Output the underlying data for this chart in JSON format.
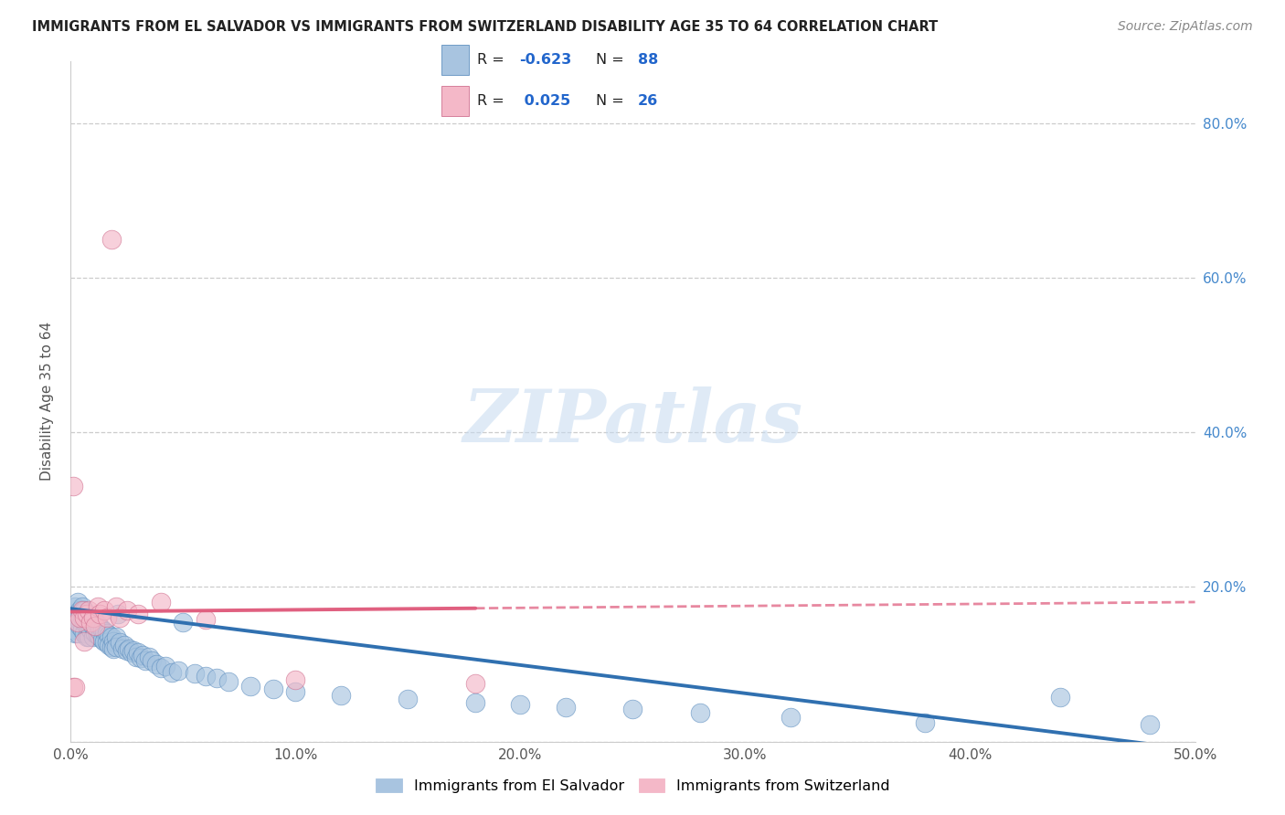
{
  "title": "IMMIGRANTS FROM EL SALVADOR VS IMMIGRANTS FROM SWITZERLAND DISABILITY AGE 35 TO 64 CORRELATION CHART",
  "source": "Source: ZipAtlas.com",
  "ylabel": "Disability Age 35 to 64",
  "xlim": [
    0.0,
    0.5
  ],
  "ylim": [
    0.0,
    0.88
  ],
  "xticks": [
    0.0,
    0.1,
    0.2,
    0.3,
    0.4,
    0.5
  ],
  "xtick_labels": [
    "0.0%",
    "10.0%",
    "20.0%",
    "30.0%",
    "40.0%",
    "50.0%"
  ],
  "yticks": [
    0.0,
    0.2,
    0.4,
    0.6,
    0.8
  ],
  "ytick_labels_right": [
    "",
    "20.0%",
    "40.0%",
    "60.0%",
    "80.0%"
  ],
  "blue_color": "#a8c4e0",
  "pink_color": "#f4b8c8",
  "blue_line_color": "#3070b0",
  "pink_line_color": "#e06080",
  "R_blue": -0.623,
  "N_blue": 88,
  "R_pink": 0.025,
  "N_pink": 26,
  "legend_blue_label": "Immigrants from El Salvador",
  "legend_pink_label": "Immigrants from Switzerland",
  "watermark": "ZIPatlas",
  "blue_intercept": 0.172,
  "blue_slope": -0.365,
  "pink_intercept": 0.168,
  "pink_slope": 0.025,
  "blue_scatter_x": [
    0.001,
    0.001,
    0.002,
    0.002,
    0.002,
    0.003,
    0.003,
    0.003,
    0.003,
    0.004,
    0.004,
    0.004,
    0.005,
    0.005,
    0.005,
    0.006,
    0.006,
    0.006,
    0.007,
    0.007,
    0.007,
    0.008,
    0.008,
    0.008,
    0.009,
    0.009,
    0.01,
    0.01,
    0.01,
    0.011,
    0.011,
    0.012,
    0.012,
    0.013,
    0.013,
    0.014,
    0.014,
    0.015,
    0.015,
    0.016,
    0.016,
    0.017,
    0.017,
    0.018,
    0.018,
    0.019,
    0.019,
    0.02,
    0.02,
    0.021,
    0.022,
    0.023,
    0.024,
    0.025,
    0.026,
    0.027,
    0.028,
    0.029,
    0.03,
    0.031,
    0.032,
    0.033,
    0.035,
    0.036,
    0.038,
    0.04,
    0.042,
    0.045,
    0.048,
    0.05,
    0.055,
    0.06,
    0.065,
    0.07,
    0.08,
    0.09,
    0.1,
    0.12,
    0.15,
    0.18,
    0.2,
    0.22,
    0.25,
    0.28,
    0.32,
    0.38,
    0.44,
    0.48
  ],
  "blue_scatter_y": [
    0.165,
    0.145,
    0.175,
    0.16,
    0.14,
    0.18,
    0.165,
    0.155,
    0.14,
    0.17,
    0.16,
    0.15,
    0.175,
    0.16,
    0.145,
    0.17,
    0.155,
    0.14,
    0.165,
    0.15,
    0.135,
    0.16,
    0.148,
    0.135,
    0.158,
    0.145,
    0.16,
    0.148,
    0.135,
    0.155,
    0.14,
    0.152,
    0.138,
    0.148,
    0.135,
    0.145,
    0.132,
    0.143,
    0.13,
    0.14,
    0.128,
    0.138,
    0.125,
    0.135,
    0.122,
    0.13,
    0.12,
    0.135,
    0.122,
    0.165,
    0.128,
    0.12,
    0.125,
    0.118,
    0.12,
    0.115,
    0.118,
    0.11,
    0.115,
    0.108,
    0.112,
    0.105,
    0.11,
    0.105,
    0.1,
    0.095,
    0.098,
    0.09,
    0.092,
    0.155,
    0.088,
    0.085,
    0.082,
    0.078,
    0.072,
    0.068,
    0.065,
    0.06,
    0.055,
    0.05,
    0.048,
    0.045,
    0.042,
    0.038,
    0.032,
    0.025,
    0.058,
    0.022
  ],
  "pink_scatter_x": [
    0.001,
    0.001,
    0.002,
    0.003,
    0.004,
    0.005,
    0.006,
    0.006,
    0.007,
    0.008,
    0.009,
    0.01,
    0.011,
    0.012,
    0.013,
    0.015,
    0.016,
    0.018,
    0.02,
    0.022,
    0.025,
    0.03,
    0.04,
    0.06,
    0.1,
    0.18
  ],
  "pink_scatter_y": [
    0.33,
    0.07,
    0.07,
    0.155,
    0.16,
    0.17,
    0.16,
    0.13,
    0.165,
    0.17,
    0.155,
    0.16,
    0.15,
    0.175,
    0.165,
    0.17,
    0.16,
    0.65,
    0.175,
    0.16,
    0.17,
    0.165,
    0.18,
    0.158,
    0.08,
    0.075
  ]
}
